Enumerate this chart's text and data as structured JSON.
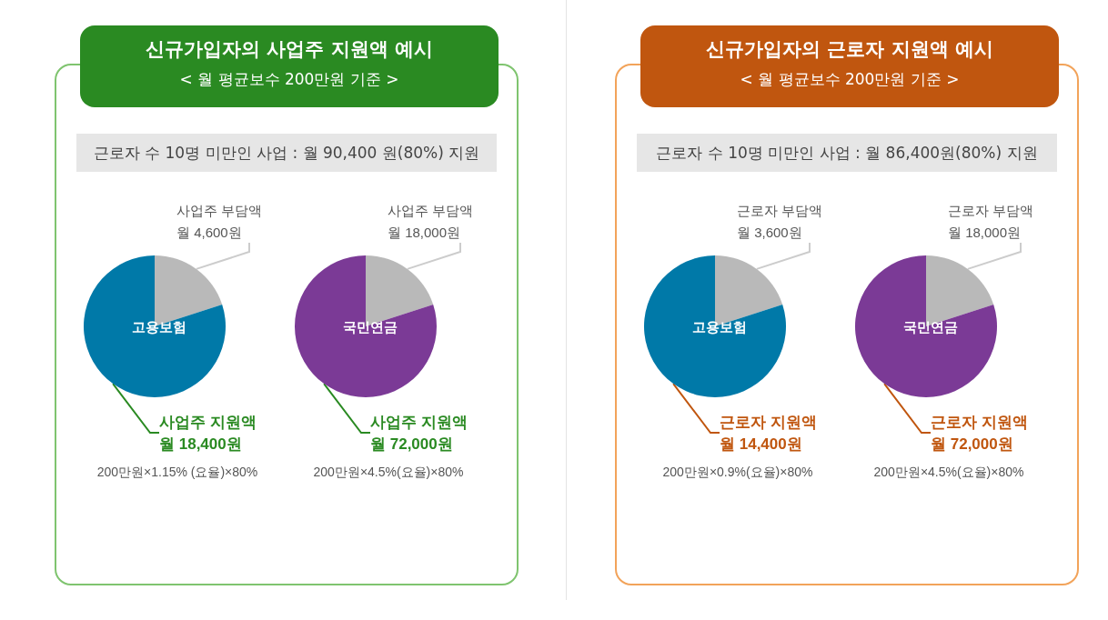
{
  "chart_data": [
    {
      "type": "other",
      "title": "신규가입자의 사업주 지원액 예시",
      "subtitle": "< 월 평균보수 200만원 기준 >",
      "annotations": [
        "근로자 수 10명 미만인 사업 : 월 90,400 원(80%) 지원"
      ]
    },
    {
      "type": "pie",
      "title": "고용보험",
      "categories": [
        "사업주 부담액",
        "사업주 지원액"
      ],
      "values": [
        4600,
        18400
      ],
      "value_labels": [
        "월 4,600원",
        "월 18,400원"
      ],
      "colors": [
        "#b9b9b9",
        "#0079a8"
      ],
      "annotations": [
        "200만원×1.15% (요율)×80%"
      ]
    },
    {
      "type": "pie",
      "title": "국민연금",
      "categories": [
        "사업주 부담액",
        "사업주 지원액"
      ],
      "values": [
        18000,
        72000
      ],
      "value_labels": [
        "월 18,000원",
        "월 72,000원"
      ],
      "colors": [
        "#b9b9b9",
        "#7b3a96"
      ],
      "annotations": [
        "200만원×4.5%(요율)×80%"
      ]
    },
    {
      "type": "other",
      "title": "신규가입자의 근로자 지원액 예시",
      "subtitle": "< 월 평균보수 200만원 기준 >",
      "annotations": [
        "근로자 수 10명 미만인 사업 : 월 86,400원(80%) 지원"
      ]
    },
    {
      "type": "pie",
      "title": "고용보험",
      "categories": [
        "근로자 부담액",
        "근로자 지원액"
      ],
      "values": [
        3600,
        14400
      ],
      "value_labels": [
        "월 3,600원",
        "월 14,400원"
      ],
      "colors": [
        "#b9b9b9",
        "#0079a8"
      ],
      "annotations": [
        "200만원×0.9%(요율)×80%"
      ]
    },
    {
      "type": "pie",
      "title": "국민연금",
      "categories": [
        "근로자 부담액",
        "근로자 지원액"
      ],
      "values": [
        18000,
        72000
      ],
      "value_labels": [
        "월 18,000원",
        "월 72,000원"
      ],
      "colors": [
        "#b9b9b9",
        "#7b3a96"
      ],
      "annotations": [
        "200만원×4.5%(요율)×80%"
      ]
    }
  ]
}
